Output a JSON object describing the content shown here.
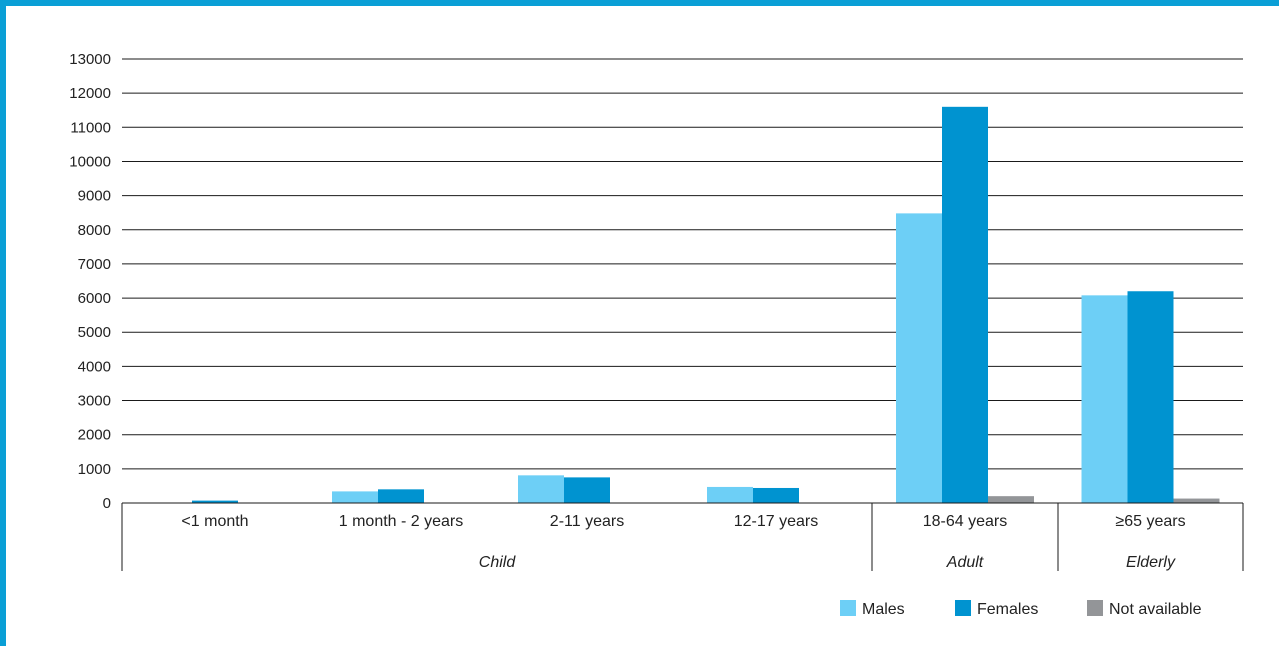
{
  "chart_data": {
    "type": "bar",
    "title": "",
    "xlabel": "",
    "ylabel": "",
    "ylim": [
      0,
      13000
    ],
    "yticks": [
      0,
      1000,
      2000,
      3000,
      4000,
      5000,
      6000,
      7000,
      8000,
      9000,
      10000,
      11000,
      12000,
      13000
    ],
    "grid": true,
    "legend_position": "bottom-right",
    "categories": [
      "<1 month",
      "1 month - 2 years",
      "2-11 years",
      "12-17 years",
      "18-64 years",
      "≥65 years"
    ],
    "groups": [
      {
        "label": "Child",
        "from": 0,
        "to": 3
      },
      {
        "label": "Adult",
        "from": 4,
        "to": 4
      },
      {
        "label": "Elderly",
        "from": 5,
        "to": 5
      }
    ],
    "series": [
      {
        "name": "Males",
        "color": "#6dcff6",
        "values": [
          10,
          340,
          810,
          470,
          8480,
          6080
        ]
      },
      {
        "name": "Females",
        "color": "#0093d0",
        "values": [
          70,
          400,
          750,
          440,
          11600,
          6200
        ]
      },
      {
        "name": "Not available",
        "color": "#939598",
        "values": [
          0,
          0,
          0,
          0,
          200,
          130
        ]
      }
    ]
  }
}
